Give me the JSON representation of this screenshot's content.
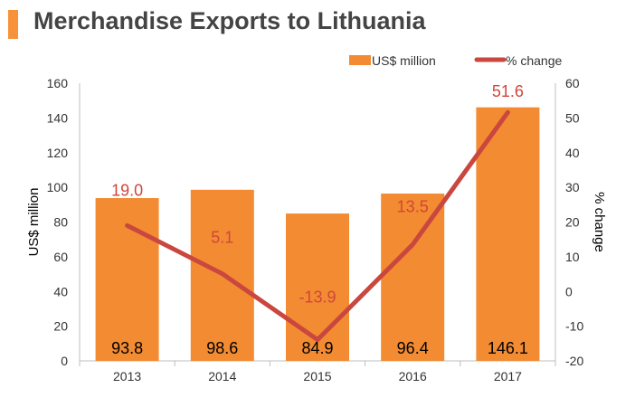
{
  "title": "Merchandise Exports to Lithuania",
  "colors": {
    "bar": "#f38b32",
    "line": "#c9473f",
    "accent": "#f7923a",
    "axis_text": "#333333",
    "pct_label": "#d0463b"
  },
  "chart_data": {
    "type": "bar",
    "categories": [
      "2013",
      "2014",
      "2015",
      "2016",
      "2017"
    ],
    "series": [
      {
        "name": "US$ million",
        "type": "bar",
        "axis": "left",
        "values": [
          93.8,
          98.6,
          84.9,
          96.4,
          146.1
        ],
        "labels": [
          "93.8",
          "98.6",
          "84.9",
          "96.4",
          "146.1"
        ]
      },
      {
        "name": "% change",
        "type": "line",
        "axis": "right",
        "values": [
          19.0,
          5.1,
          -13.9,
          13.5,
          51.6
        ],
        "labels": [
          "19.0",
          "5.1",
          "-13.9",
          "13.5",
          "51.6"
        ]
      }
    ],
    "ylabel": "US$ million",
    "y2label": "% change",
    "ylim": [
      0,
      160
    ],
    "yticks": [
      "0",
      "20",
      "40",
      "60",
      "80",
      "100",
      "120",
      "140",
      "160"
    ],
    "y2lim": [
      -20,
      60
    ],
    "y2ticks": [
      "-20",
      "-10",
      "0",
      "10",
      "20",
      "30",
      "40",
      "50",
      "60"
    ],
    "grid": false,
    "legend": "top-right"
  }
}
